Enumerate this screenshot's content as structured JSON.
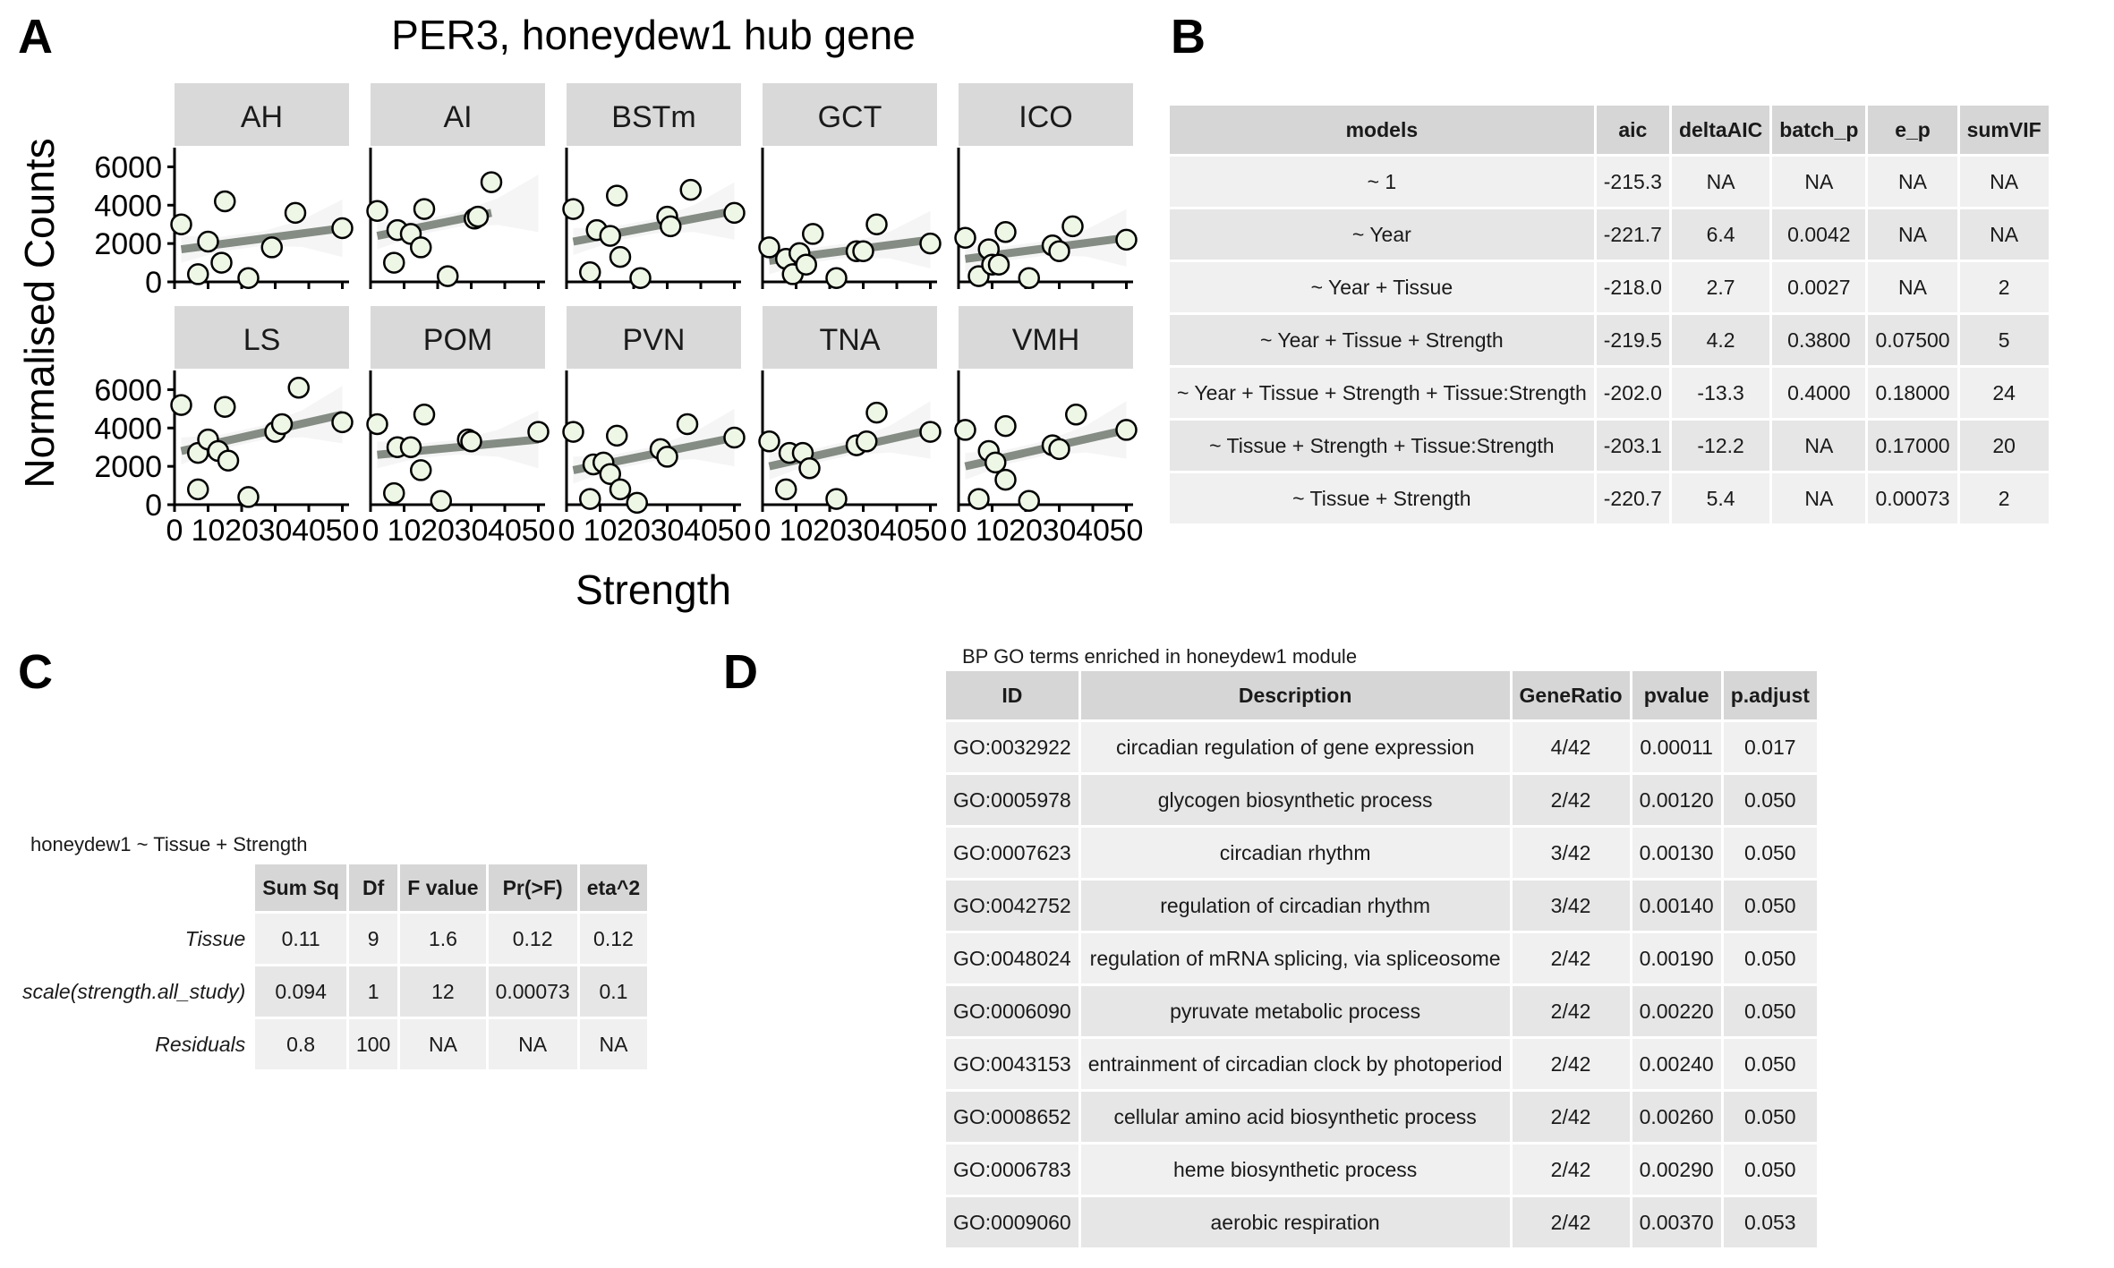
{
  "panel_letters": {
    "a": "A",
    "b": "B",
    "c": "C",
    "d": "D"
  },
  "chart_data": {
    "type": "scatter",
    "title": "PER3, honeydew1 hub gene",
    "xlabel": "Strength",
    "ylabel": "Normalised Counts",
    "xlim": [
      0,
      52
    ],
    "ylim": [
      0,
      7000
    ],
    "x_ticks": [
      0,
      10,
      20,
      30,
      40,
      50
    ],
    "x_tick_labels": [
      "0",
      "10",
      "20",
      "30",
      "40",
      "50"
    ],
    "y_ticks": [
      0,
      2000,
      4000,
      6000
    ],
    "y_tick_labels": [
      "0",
      "2000",
      "4000",
      "6000"
    ],
    "grid": false,
    "point_fill": "#eef7e6",
    "line_color": "#848c84",
    "ribbon_color": "#ececec",
    "strip_fill": "#d9d9d9",
    "facets": [
      {
        "label": "AH",
        "points": [
          [
            2,
            3000
          ],
          [
            7,
            400
          ],
          [
            10,
            2100
          ],
          [
            14,
            1000
          ],
          [
            15,
            4200
          ],
          [
            22,
            200
          ],
          [
            29,
            1800
          ],
          [
            36,
            3600
          ],
          [
            50,
            2800
          ]
        ],
        "fit": [
          [
            2,
            1700
          ],
          [
            50,
            2800
          ]
        ]
      },
      {
        "label": "AI",
        "points": [
          [
            2,
            3700
          ],
          [
            7,
            1000
          ],
          [
            8,
            2700
          ],
          [
            12,
            2500
          ],
          [
            15,
            1800
          ],
          [
            16,
            3800
          ],
          [
            23,
            300
          ],
          [
            31,
            3300
          ],
          [
            32,
            3400
          ],
          [
            36,
            5200
          ]
        ],
        "fit": [
          [
            2,
            2400
          ],
          [
            36,
            3600
          ]
        ]
      },
      {
        "label": "BSTm",
        "points": [
          [
            2,
            3800
          ],
          [
            7,
            500
          ],
          [
            9,
            2700
          ],
          [
            13,
            2400
          ],
          [
            15,
            4500
          ],
          [
            16,
            1300
          ],
          [
            22,
            200
          ],
          [
            30,
            3400
          ],
          [
            31,
            2900
          ],
          [
            37,
            4800
          ],
          [
            50,
            3600
          ]
        ],
        "fit": [
          [
            2,
            2100
          ],
          [
            50,
            3700
          ]
        ]
      },
      {
        "label": "GCT",
        "points": [
          [
            2,
            1800
          ],
          [
            7,
            1200
          ],
          [
            9,
            400
          ],
          [
            11,
            1500
          ],
          [
            13,
            900
          ],
          [
            15,
            2500
          ],
          [
            22,
            200
          ],
          [
            28,
            1600
          ],
          [
            30,
            1600
          ],
          [
            34,
            3000
          ],
          [
            50,
            2000
          ]
        ],
        "fit": [
          [
            2,
            1100
          ],
          [
            50,
            2200
          ]
        ]
      },
      {
        "label": "ICO",
        "points": [
          [
            2,
            2300
          ],
          [
            6,
            300
          ],
          [
            9,
            1700
          ],
          [
            10,
            900
          ],
          [
            12,
            900
          ],
          [
            14,
            2600
          ],
          [
            21,
            200
          ],
          [
            28,
            1900
          ],
          [
            30,
            1600
          ],
          [
            34,
            2900
          ],
          [
            50,
            2200
          ]
        ],
        "fit": [
          [
            2,
            1200
          ],
          [
            50,
            2300
          ]
        ]
      },
      {
        "label": "LS",
        "points": [
          [
            2,
            5200
          ],
          [
            7,
            800
          ],
          [
            7,
            2700
          ],
          [
            10,
            3400
          ],
          [
            13,
            2800
          ],
          [
            15,
            5100
          ],
          [
            16,
            2300
          ],
          [
            22,
            400
          ],
          [
            30,
            3800
          ],
          [
            32,
            4200
          ],
          [
            37,
            6100
          ],
          [
            50,
            4300
          ]
        ],
        "fit": [
          [
            2,
            2800
          ],
          [
            50,
            4700
          ]
        ]
      },
      {
        "label": "POM",
        "points": [
          [
            2,
            4200
          ],
          [
            7,
            600
          ],
          [
            8,
            3000
          ],
          [
            12,
            3000
          ],
          [
            15,
            1800
          ],
          [
            16,
            4700
          ],
          [
            21,
            200
          ],
          [
            29,
            3400
          ],
          [
            30,
            3300
          ],
          [
            50,
            3800
          ]
        ],
        "fit": [
          [
            2,
            2600
          ],
          [
            50,
            3400
          ]
        ]
      },
      {
        "label": "PVN",
        "points": [
          [
            2,
            3800
          ],
          [
            7,
            300
          ],
          [
            8,
            2100
          ],
          [
            11,
            2200
          ],
          [
            13,
            1600
          ],
          [
            15,
            3600
          ],
          [
            16,
            800
          ],
          [
            21,
            100
          ],
          [
            28,
            2900
          ],
          [
            30,
            2500
          ],
          [
            36,
            4200
          ],
          [
            50,
            3500
          ]
        ],
        "fit": [
          [
            2,
            1800
          ],
          [
            50,
            3500
          ]
        ]
      },
      {
        "label": "TNA",
        "points": [
          [
            2,
            3300
          ],
          [
            7,
            800
          ],
          [
            8,
            2700
          ],
          [
            12,
            2700
          ],
          [
            14,
            1900
          ],
          [
            22,
            300
          ],
          [
            28,
            3100
          ],
          [
            31,
            3300
          ],
          [
            34,
            4800
          ],
          [
            50,
            3800
          ]
        ],
        "fit": [
          [
            2,
            2000
          ],
          [
            50,
            3900
          ]
        ]
      },
      {
        "label": "VMH",
        "points": [
          [
            2,
            3900
          ],
          [
            6,
            300
          ],
          [
            9,
            2800
          ],
          [
            11,
            2200
          ],
          [
            14,
            4100
          ],
          [
            14,
            1300
          ],
          [
            21,
            200
          ],
          [
            28,
            3100
          ],
          [
            30,
            2900
          ],
          [
            35,
            4700
          ],
          [
            50,
            3900
          ]
        ],
        "fit": [
          [
            2,
            2000
          ],
          [
            50,
            3900
          ]
        ]
      }
    ]
  },
  "tableB": {
    "headers": [
      "models",
      "aic",
      "deltaAIC",
      "batch_p",
      "e_p",
      "sumVIF"
    ],
    "rows": [
      [
        "~ 1",
        "-215.3",
        "NA",
        "NA",
        "NA",
        "NA"
      ],
      [
        "~ Year",
        "-221.7",
        "6.4",
        "0.0042",
        "NA",
        "NA"
      ],
      [
        "~ Year + Tissue",
        "-218.0",
        "2.7",
        "0.0027",
        "NA",
        "2"
      ],
      [
        "~ Year + Tissue + Strength",
        "-219.5",
        "4.2",
        "0.3800",
        "0.07500",
        "5"
      ],
      [
        "~ Year + Tissue + Strength + Tissue:Strength",
        "-202.0",
        "-13.3",
        "0.4000",
        "0.18000",
        "24"
      ],
      [
        "~ Tissue + Strength + Tissue:Strength",
        "-203.1",
        "-12.2",
        "NA",
        "0.17000",
        "20"
      ],
      [
        "~ Tissue + Strength",
        "-220.7",
        "5.4",
        "NA",
        "0.00073",
        "2"
      ]
    ]
  },
  "tableC": {
    "caption": "honeydew1 ~ Tissue + Strength",
    "headers": [
      "Sum Sq",
      "Df",
      "F value",
      "Pr(>F)",
      "eta^2"
    ],
    "rows": [
      {
        "label": "Tissue",
        "cells": [
          "0.11",
          "9",
          "1.6",
          "0.12",
          "0.12"
        ]
      },
      {
        "label": "scale(strength.all_study)",
        "cells": [
          "0.094",
          "1",
          "12",
          "0.00073",
          "0.1"
        ]
      },
      {
        "label": "Residuals",
        "cells": [
          "0.8",
          "100",
          "NA",
          "NA",
          "NA"
        ]
      }
    ]
  },
  "tableD": {
    "caption": "BP GO terms enriched in honeydew1 module",
    "headers": [
      "ID",
      "Description",
      "GeneRatio",
      "pvalue",
      "p.adjust"
    ],
    "rows": [
      [
        "GO:0032922",
        "circadian regulation of gene expression",
        "4/42",
        "0.00011",
        "0.017"
      ],
      [
        "GO:0005978",
        "glycogen biosynthetic process",
        "2/42",
        "0.00120",
        "0.050"
      ],
      [
        "GO:0007623",
        "circadian rhythm",
        "3/42",
        "0.00130",
        "0.050"
      ],
      [
        "GO:0042752",
        "regulation of circadian rhythm",
        "3/42",
        "0.00140",
        "0.050"
      ],
      [
        "GO:0048024",
        "regulation of mRNA splicing, via spliceosome",
        "2/42",
        "0.00190",
        "0.050"
      ],
      [
        "GO:0006090",
        "pyruvate metabolic process",
        "2/42",
        "0.00220",
        "0.050"
      ],
      [
        "GO:0043153",
        "entrainment of circadian clock by photoperiod",
        "2/42",
        "0.00240",
        "0.050"
      ],
      [
        "GO:0008652",
        "cellular amino acid biosynthetic process",
        "2/42",
        "0.00260",
        "0.050"
      ],
      [
        "GO:0006783",
        "heme biosynthetic process",
        "2/42",
        "0.00290",
        "0.050"
      ],
      [
        "GO:0009060",
        "aerobic respiration",
        "2/42",
        "0.00370",
        "0.053"
      ]
    ]
  }
}
